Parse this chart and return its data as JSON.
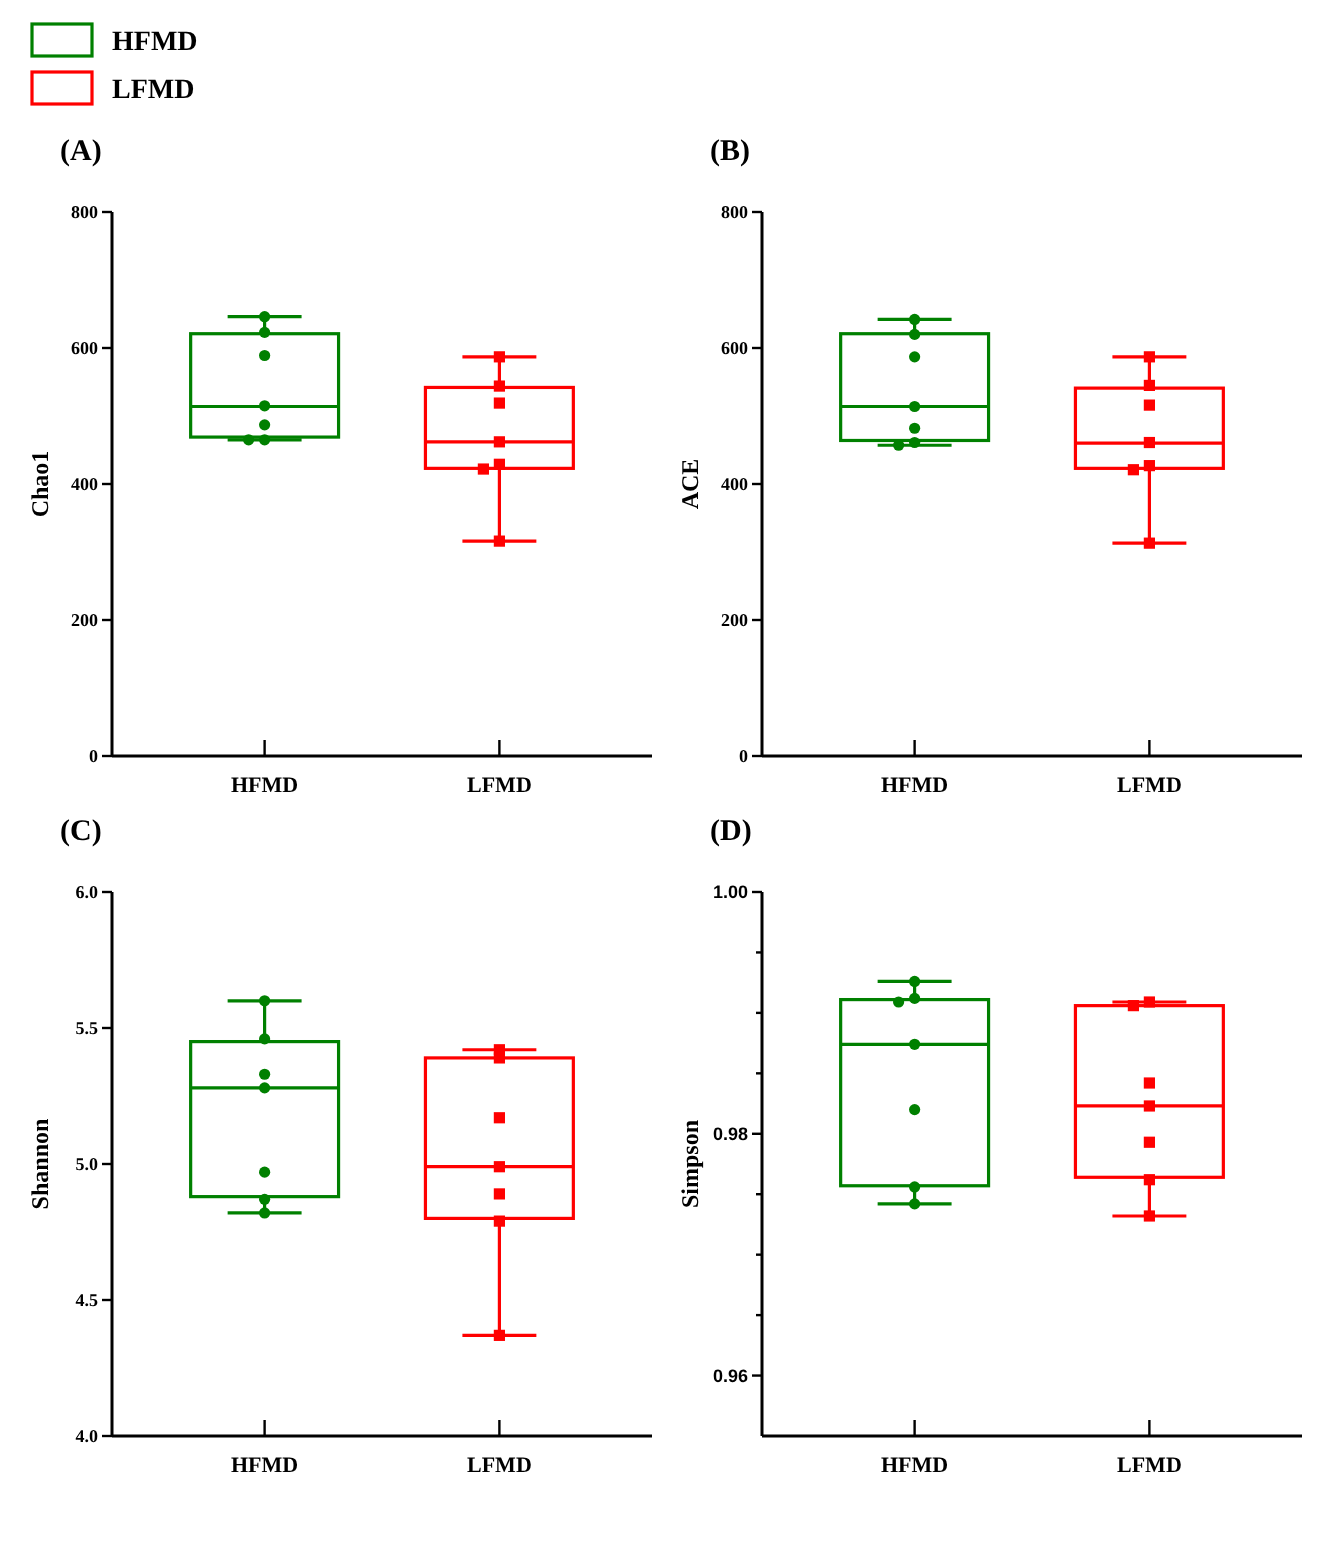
{
  "chart_data": [
    {
      "type": "box",
      "title": "(A)",
      "ylabel": "Chao1",
      "categories": [
        "HFMD",
        "LFMD"
      ],
      "ylim": [
        0,
        800
      ],
      "yticks": [
        0,
        200,
        400,
        600,
        800
      ],
      "legend": "top left",
      "series": [
        {
          "name": "HFMD",
          "color": "#008000",
          "boxes": [
            {
              "low": 465,
              "q1": 469,
              "median": 514,
              "q3": 621,
              "high": 646
            },
            null
          ]
        },
        {
          "name": "LFMD",
          "color": "#ff0000",
          "boxes": [
            null,
            {
              "low": 316,
              "q1": 423,
              "median": 462,
              "q3": 542,
              "high": 587
            }
          ]
        },
        {
          "type": "scatter",
          "color": "#008000",
          "marker": "circle",
          "x": [
            "HFMD",
            "HFMD",
            "HFMD",
            "HFMD",
            "HFMD",
            "HFMD",
            "HFMD"
          ],
          "values": [
            646,
            623,
            589,
            515,
            487,
            465,
            465
          ]
        },
        {
          "type": "scatter",
          "color": "#ff0000",
          "marker": "square",
          "x": [
            "LFMD",
            "LFMD",
            "LFMD",
            "LFMD",
            "LFMD",
            "LFMD",
            "LFMD"
          ],
          "values": [
            587,
            544,
            519,
            462,
            429,
            422,
            316
          ]
        }
      ]
    },
    {
      "type": "box",
      "title": "(B)",
      "ylabel": "ACE",
      "categories": [
        "HFMD",
        "LFMD"
      ],
      "ylim": [
        0,
        800
      ],
      "yticks": [
        0,
        200,
        400,
        600,
        800
      ],
      "series": [
        {
          "color": "#008000",
          "boxes": [
            {
              "low": 457,
              "q1": 464,
              "median": 514,
              "q3": 621,
              "high": 642
            },
            null
          ]
        },
        {
          "color": "#ff0000",
          "boxes": [
            null,
            {
              "low": 313,
              "q1": 423,
              "median": 460,
              "q3": 541,
              "high": 587
            }
          ]
        },
        {
          "type": "scatter",
          "color": "#008000",
          "marker": "circle",
          "x": [
            "HFMD",
            "HFMD",
            "HFMD",
            "HFMD",
            "HFMD",
            "HFMD",
            "HFMD"
          ],
          "values": [
            642,
            620,
            587,
            514,
            482,
            461,
            457
          ]
        },
        {
          "type": "scatter",
          "color": "#ff0000",
          "marker": "square",
          "x": [
            "LFMD",
            "LFMD",
            "LFMD",
            "LFMD",
            "LFMD",
            "LFMD",
            "LFMD"
          ],
          "values": [
            587,
            545,
            516,
            461,
            427,
            421,
            313
          ]
        }
      ]
    },
    {
      "type": "box",
      "title": "(C)",
      "ylabel": "Shannon",
      "categories": [
        "HFMD",
        "LFMD"
      ],
      "ylim": [
        4,
        6
      ],
      "yticks": [
        {
          "value": 4,
          "label": "4.0"
        },
        {
          "value": 4.5,
          "label": "4.5"
        },
        {
          "value": 5,
          "label": "5.0"
        },
        {
          "value": 5.5,
          "label": "5.5"
        },
        {
          "value": 6,
          "label": "6.0"
        }
      ],
      "series": [
        {
          "color": "#008000",
          "boxes": [
            {
              "low": 4.82,
              "q1": 4.88,
              "median": 5.28,
              "q3": 5.45,
              "high": 5.6
            },
            null
          ]
        },
        {
          "color": "#ff0000",
          "boxes": [
            null,
            {
              "low": 4.37,
              "q1": 4.8,
              "median": 4.99,
              "q3": 5.39,
              "high": 5.42
            }
          ]
        },
        {
          "type": "scatter",
          "color": "#008000",
          "marker": "circle",
          "x": [
            "HFMD",
            "HFMD",
            "HFMD",
            "HFMD",
            "HFMD",
            "HFMD",
            "HFMD"
          ],
          "values": [
            5.6,
            5.46,
            5.33,
            5.28,
            4.97,
            4.87,
            4.82
          ]
        },
        {
          "type": "scatter",
          "color": "#ff0000",
          "marker": "square",
          "x": [
            "LFMD",
            "LFMD",
            "LFMD",
            "LFMD",
            "LFMD",
            "LFMD",
            "LFMD"
          ],
          "values": [
            5.42,
            5.39,
            5.17,
            4.99,
            4.89,
            4.79,
            4.37
          ]
        }
      ]
    },
    {
      "type": "box",
      "title": "(D)",
      "ylabel": "Simpson",
      "categories": [
        "HFMD",
        "LFMD"
      ],
      "ylim": [
        0.955,
        1
      ],
      "yticks": [
        0.96,
        {
          "value": 0.965,
          "label": null
        },
        {
          "value": 0.97,
          "label": null
        },
        {
          "value": 0.975,
          "label": null
        },
        0.98,
        {
          "value": 0.985,
          "label": null
        },
        {
          "value": 0.99,
          "label": null
        },
        {
          "value": 0.995,
          "label": null
        },
        {
          "value": 1,
          "label": "1.00"
        }
      ],
      "series": [
        {
          "color": "#008000",
          "boxes": [
            {
              "low": 0.9742,
              "q1": 0.9757,
              "median": 0.9874,
              "q3": 0.9911,
              "high": 0.9926
            },
            null
          ]
        },
        {
          "color": "#ff0000",
          "boxes": [
            null,
            {
              "low": 0.9732,
              "q1": 0.9764,
              "median": 0.9823,
              "q3": 0.9906,
              "high": 0.9909
            }
          ]
        },
        {
          "type": "scatter",
          "color": "#008000",
          "marker": "circle",
          "x": [
            "HFMD",
            "HFMD",
            "HFMD",
            "HFMD",
            "HFMD",
            "HFMD",
            "HFMD"
          ],
          "values": [
            0.9926,
            0.9912,
            0.9909,
            0.9874,
            0.982,
            0.9756,
            0.9742
          ]
        },
        {
          "type": "scatter",
          "color": "#ff0000",
          "marker": "square",
          "x": [
            "LFMD",
            "LFMD",
            "LFMD",
            "LFMD",
            "LFMD",
            "LFMD",
            "LFMD"
          ],
          "values": [
            0.9909,
            0.9906,
            0.9842,
            0.9823,
            0.9793,
            0.9762,
            0.9732
          ]
        }
      ]
    }
  ]
}
